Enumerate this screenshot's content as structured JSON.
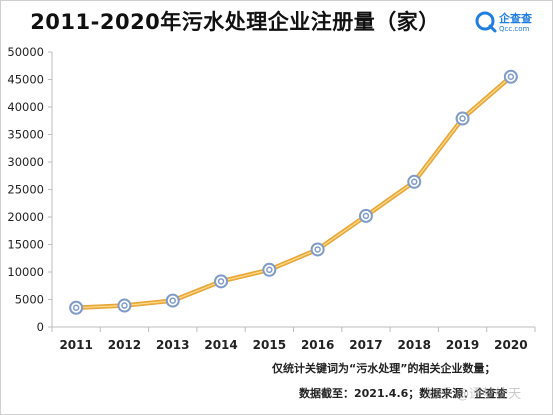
{
  "chart_data": {
    "type": "line",
    "title": "2011-2020年污水处理企业注册量（家）",
    "categories": [
      "2011",
      "2012",
      "2013",
      "2014",
      "2015",
      "2016",
      "2017",
      "2018",
      "2019",
      "2020"
    ],
    "series": [
      {
        "values": [
          3500,
          3900,
          4800,
          8300,
          10400,
          14100,
          20200,
          26400,
          37900,
          45500
        ]
      }
    ],
    "ylim": [
      0,
      50000
    ],
    "yticks": [
      "0",
      "5000",
      "10000",
      "15000",
      "20000",
      "25000",
      "30000",
      "35000",
      "40000",
      "45000",
      "50000"
    ],
    "grid": false,
    "line_color": "#f2b240",
    "marker_color": "#7f9cc9"
  },
  "brand": {
    "name": "企查查",
    "domain": "Qcc.com"
  },
  "notes": {
    "line1": "仅统计关键词为“污水处理”的相关企业数量；",
    "line2": "数据截至：2021.4.6；数据来源：企查查"
  },
  "watermark": "知乎 @逐梦枕天"
}
